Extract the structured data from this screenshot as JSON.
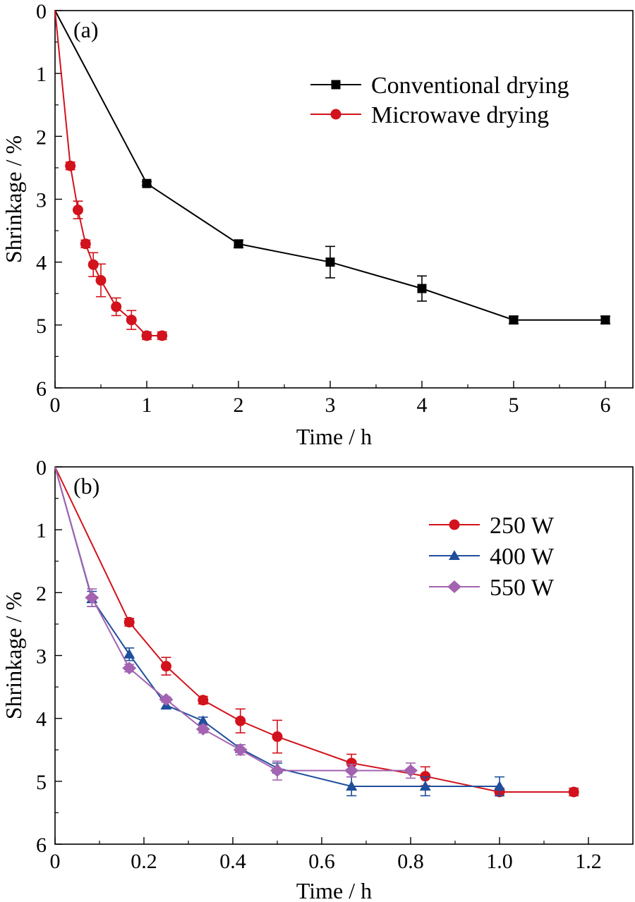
{
  "chart_data": [
    {
      "panel_label": "(a)",
      "type": "line",
      "xlabel": "Time / h",
      "ylabel": "Shrinkage / %",
      "xlim": [
        0,
        6.3
      ],
      "ylim": [
        0,
        6
      ],
      "y_inverted": true,
      "xticks": [
        "0",
        "1",
        "2",
        "3",
        "4",
        "5",
        "6"
      ],
      "yticks": [
        "0",
        "1",
        "2",
        "3",
        "4",
        "5",
        "6"
      ],
      "legend_position": "top-right",
      "series": [
        {
          "name": "Conventional drying",
          "color": "#000000",
          "marker": "square",
          "x": [
            0,
            1,
            2,
            3,
            4,
            5,
            6
          ],
          "y": [
            0,
            2.75,
            3.71,
            4.0,
            4.42,
            4.92,
            4.92
          ],
          "err": [
            0,
            0.03,
            0.06,
            0.25,
            0.2,
            0.06,
            0.06
          ]
        },
        {
          "name": "Microwave drying",
          "color": "#d2121c",
          "marker": "circle",
          "x": [
            0,
            0.167,
            0.25,
            0.333,
            0.417,
            0.5,
            0.667,
            0.833,
            1.0,
            1.167
          ],
          "y": [
            0,
            2.47,
            3.17,
            3.71,
            4.04,
            4.29,
            4.71,
            4.92,
            5.17,
            5.17
          ],
          "err": [
            0,
            0.06,
            0.14,
            0.06,
            0.19,
            0.26,
            0.14,
            0.15,
            0.06,
            0.06
          ]
        }
      ]
    },
    {
      "panel_label": "(b)",
      "type": "line",
      "xlabel": "Time / h",
      "ylabel": "Shrinkage / %",
      "xlim": [
        0,
        1.3
      ],
      "ylim": [
        0,
        6
      ],
      "y_inverted": true,
      "xticks": [
        "0",
        "0.2",
        "0.4",
        "0.6",
        "0.8",
        "1.0",
        "1.2"
      ],
      "yticks": [
        "0",
        "1",
        "2",
        "3",
        "4",
        "5",
        "6"
      ],
      "legend_position": "top-right",
      "series": [
        {
          "name": "250 W",
          "color": "#d2121c",
          "marker": "circle",
          "x": [
            0,
            0.167,
            0.25,
            0.333,
            0.417,
            0.5,
            0.667,
            0.833,
            1.0,
            1.167
          ],
          "y": [
            0,
            2.47,
            3.17,
            3.71,
            4.04,
            4.29,
            4.71,
            4.92,
            5.17,
            5.17
          ],
          "err": [
            0,
            0.06,
            0.14,
            0.06,
            0.19,
            0.26,
            0.14,
            0.15,
            0.06,
            0.06
          ]
        },
        {
          "name": "400 W",
          "color": "#1f4e9c",
          "marker": "triangle",
          "x": [
            0,
            0.083,
            0.167,
            0.25,
            0.333,
            0.417,
            0.5,
            0.667,
            0.833,
            1.0
          ],
          "y": [
            0,
            2.1,
            2.98,
            3.79,
            4.04,
            4.48,
            4.79,
            5.08,
            5.08,
            5.08
          ],
          "err": [
            0,
            0.12,
            0.1,
            0.06,
            0.06,
            0.06,
            0.08,
            0.15,
            0.15,
            0.15
          ]
        },
        {
          "name": "550 W",
          "color": "#a463b0",
          "marker": "diamond",
          "x": [
            0,
            0.083,
            0.167,
            0.25,
            0.333,
            0.417,
            0.5,
            0.667,
            0.8
          ],
          "y": [
            0,
            2.08,
            3.2,
            3.7,
            4.17,
            4.5,
            4.83,
            4.83,
            4.83
          ],
          "err": [
            0,
            0.14,
            0.06,
            0.04,
            0.06,
            0.08,
            0.15,
            0.1,
            0.12
          ]
        }
      ]
    }
  ]
}
